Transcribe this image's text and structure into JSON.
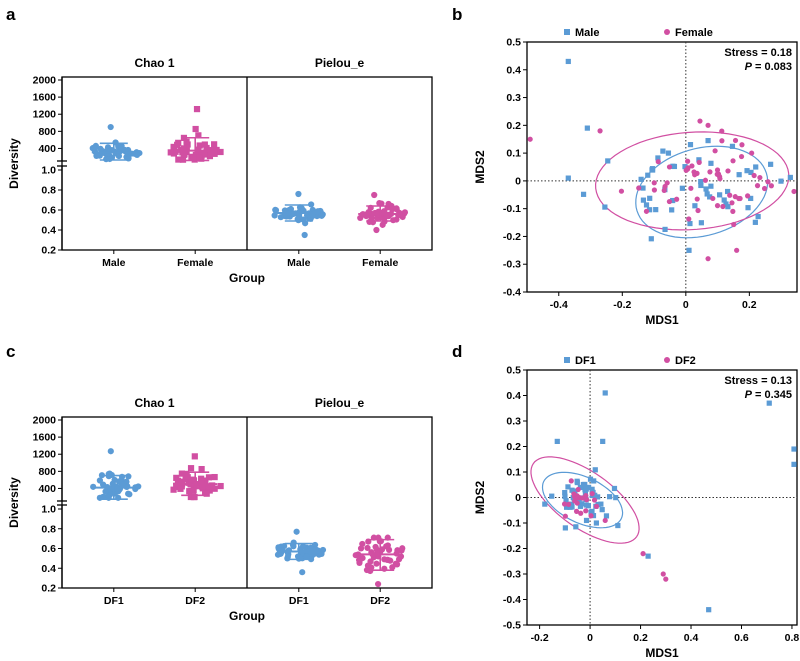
{
  "colors": {
    "male": "#5b9bd5",
    "female": "#d14fa2",
    "axis": "#000000"
  },
  "chart_data": [
    {
      "panel": "a",
      "type": "scatter",
      "subtype": "dot-plot with mean and SD",
      "xlabel": "Group",
      "ylabel": "Diversity",
      "facets": [
        {
          "title": "Chao 1",
          "ylim_upper": [
            200,
            2000
          ],
          "ylim_lower": [
            0.2,
            1.0
          ],
          "yticks": [
            "2000",
            "1600",
            "1200",
            "800",
            "400",
            "1.0",
            "0.8",
            "0.6",
            "0.4",
            "0.2"
          ],
          "groups": [
            {
              "name": "Male",
              "marker": "circle",
              "mean": 310,
              "sd_low": 130,
              "sd_high": 520,
              "min": 150,
              "max": 900
            },
            {
              "name": "Female",
              "marker": "square",
              "mean": 350,
              "sd_low": 120,
              "sd_high": 650,
              "min": 140,
              "max": 1320
            }
          ]
        },
        {
          "title": "Pielou_e",
          "ylim": [
            0.2,
            1.0
          ],
          "groups": [
            {
              "name": "Male",
              "marker": "circle",
              "mean": 0.57,
              "sd_low": 0.49,
              "sd_high": 0.65,
              "min": 0.35,
              "max": 0.76
            },
            {
              "name": "Female",
              "marker": "circle",
              "mean": 0.56,
              "sd_low": 0.49,
              "sd_high": 0.64,
              "min": 0.4,
              "max": 0.75
            }
          ]
        }
      ]
    },
    {
      "panel": "b",
      "type": "scatter",
      "subtype": "NMDS ordination",
      "xlabel": "MDS1",
      "ylabel": "MDS2",
      "xlim": [
        -0.5,
        0.35
      ],
      "ylim": [
        -0.4,
        0.5
      ],
      "xticks": [
        "-0.4",
        "-0.2",
        "0",
        "0.2"
      ],
      "yticks": [
        "0.5",
        "0.4",
        "0.3",
        "0.2",
        "0.1",
        "0",
        "-0.1",
        "-0.2",
        "-0.3",
        "-0.4"
      ],
      "stress": "Stress = 0.18",
      "p_label": "P",
      "p_value": " = 0.083",
      "legend": [
        "Male",
        "Female"
      ],
      "series": [
        {
          "name": "Male",
          "marker": "square",
          "n": 55,
          "center": [
            0.03,
            -0.03
          ],
          "spread": [
            0.13,
            0.07
          ],
          "outliers": [
            [
              -0.37,
              0.43
            ],
            [
              -0.31,
              0.19
            ],
            [
              -0.37,
              0.01
            ],
            [
              0.01,
              -0.25
            ],
            [
              0.22,
              0.05
            ]
          ]
        },
        {
          "name": "Female",
          "marker": "circle",
          "n": 60,
          "center": [
            0.05,
            0.0
          ],
          "spread": [
            0.12,
            0.07
          ],
          "outliers": [
            [
              -0.49,
              0.15
            ],
            [
              0.07,
              -0.28
            ],
            [
              0.16,
              -0.25
            ],
            [
              -0.27,
              0.18
            ],
            [
              0.07,
              0.2
            ]
          ]
        }
      ],
      "ellipses": [
        {
          "series": "Male",
          "center": [
            0.05,
            -0.04
          ],
          "rx": 0.215,
          "ry": 0.155,
          "angle_deg": 22
        },
        {
          "series": "Female",
          "center": [
            0.02,
            0.0
          ],
          "rx": 0.305,
          "ry": 0.175,
          "angle_deg": 5
        }
      ]
    },
    {
      "panel": "c",
      "type": "scatter",
      "subtype": "dot-plot with mean and SD",
      "xlabel": "Group",
      "ylabel": "Diversity",
      "facets": [
        {
          "title": "Chao 1",
          "ylim_upper": [
            200,
            2000
          ],
          "ylim_lower": [
            0.2,
            1.0
          ],
          "yticks": [
            "2000",
            "1600",
            "1200",
            "800",
            "400",
            "1.0",
            "0.8",
            "0.6",
            "0.4",
            "0.2"
          ],
          "groups": [
            {
              "name": "DF1",
              "marker": "circle",
              "mean": 420,
              "sd_low": 150,
              "sd_high": 700,
              "min": 180,
              "max": 1270
            },
            {
              "name": "DF2",
              "marker": "square",
              "mean": 500,
              "sd_low": 240,
              "sd_high": 780,
              "min": 200,
              "max": 1150
            }
          ]
        },
        {
          "title": "Pielou_e",
          "ylim": [
            0.2,
            1.0
          ],
          "groups": [
            {
              "name": "DF1",
              "marker": "circle",
              "mean": 0.57,
              "sd_low": 0.49,
              "sd_high": 0.65,
              "min": 0.36,
              "max": 0.77
            },
            {
              "name": "DF2",
              "marker": "circle",
              "mean": 0.54,
              "sd_low": 0.38,
              "sd_high": 0.69,
              "min": 0.24,
              "max": 0.71
            }
          ]
        }
      ]
    },
    {
      "panel": "d",
      "type": "scatter",
      "subtype": "NMDS ordination",
      "xlabel": "MDS1",
      "ylabel": "MDS2",
      "xlim": [
        -0.25,
        0.82
      ],
      "ylim": [
        -0.5,
        0.5
      ],
      "xticks": [
        "-0.2",
        "0",
        "0.2",
        "0.4",
        "0.6",
        "0.8"
      ],
      "yticks": [
        "0.5",
        "0.4",
        "0.3",
        "0.2",
        "0.1",
        "0",
        "-0.1",
        "-0.2",
        "-0.3",
        "-0.4",
        "-0.5"
      ],
      "stress": "Stress = 0.13",
      "p_label": "P",
      "p_value": " = 0.345",
      "legend": [
        "DF1",
        "DF2"
      ],
      "series": [
        {
          "name": "DF1",
          "marker": "square",
          "n": 60,
          "center": [
            -0.02,
            0.0
          ],
          "spread": [
            0.06,
            0.05
          ],
          "outliers": [
            [
              0.06,
              0.41
            ],
            [
              0.47,
              -0.44
            ],
            [
              0.71,
              0.37
            ],
            [
              0.82,
              0.19
            ],
            [
              0.81,
              0.13
            ],
            [
              0.23,
              -0.23
            ],
            [
              -0.13,
              0.22
            ],
            [
              0.05,
              0.22
            ],
            [
              0.11,
              -0.11
            ]
          ]
        },
        {
          "name": "DF2",
          "marker": "circle",
          "n": 22,
          "center": [
            -0.05,
            -0.01
          ],
          "spread": [
            0.04,
            0.03
          ],
          "outliers": [
            [
              0.21,
              -0.22
            ],
            [
              0.29,
              -0.3
            ],
            [
              0.3,
              -0.32
            ],
            [
              0.06,
              -0.09
            ]
          ]
        }
      ],
      "ellipses": [
        {
          "series": "DF1",
          "center": [
            -0.03,
            -0.01
          ],
          "rx": 0.17,
          "ry": 0.09,
          "angle_deg": -25
        },
        {
          "series": "DF2",
          "center": [
            -0.02,
            -0.01
          ],
          "rx": 0.25,
          "ry": 0.11,
          "angle_deg": -35
        }
      ]
    }
  ]
}
